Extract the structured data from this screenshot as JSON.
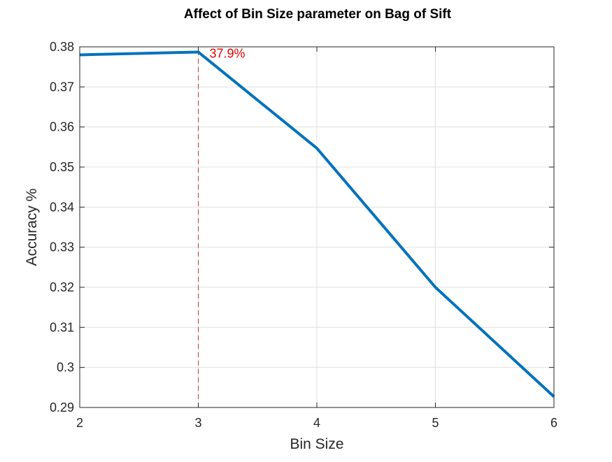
{
  "chart_data": {
    "type": "line",
    "title": "Affect of Bin Size parameter on Bag of Sift",
    "xlabel": "Bin Size",
    "ylabel": "Accuracy %",
    "xlim": [
      2,
      6
    ],
    "ylim": [
      0.29,
      0.38
    ],
    "xticks": [
      2,
      3,
      4,
      5,
      6
    ],
    "xtick_labels": [
      "2",
      "3",
      "4",
      "5",
      "6"
    ],
    "yticks": [
      0.29,
      0.3,
      0.31,
      0.32,
      0.33,
      0.34,
      0.35,
      0.36,
      0.37,
      0.38
    ],
    "ytick_labels": [
      "0.29",
      "0.3",
      "0.31",
      "0.32",
      "0.33",
      "0.34",
      "0.35",
      "0.36",
      "0.37",
      "0.38"
    ],
    "grid": true,
    "series": [
      {
        "x": [
          2,
          3,
          4,
          5,
          6
        ],
        "values": [
          0.378,
          0.3787,
          0.3547,
          0.32,
          0.2927
        ],
        "color": "#0072BD"
      }
    ],
    "annotation": {
      "x": 3,
      "y": 0.3787,
      "text": "37.9%",
      "color": "#E00000",
      "line_color": "#C0392B"
    },
    "colors": {
      "axis": "#262626",
      "grid": "#E0E0E0"
    }
  }
}
